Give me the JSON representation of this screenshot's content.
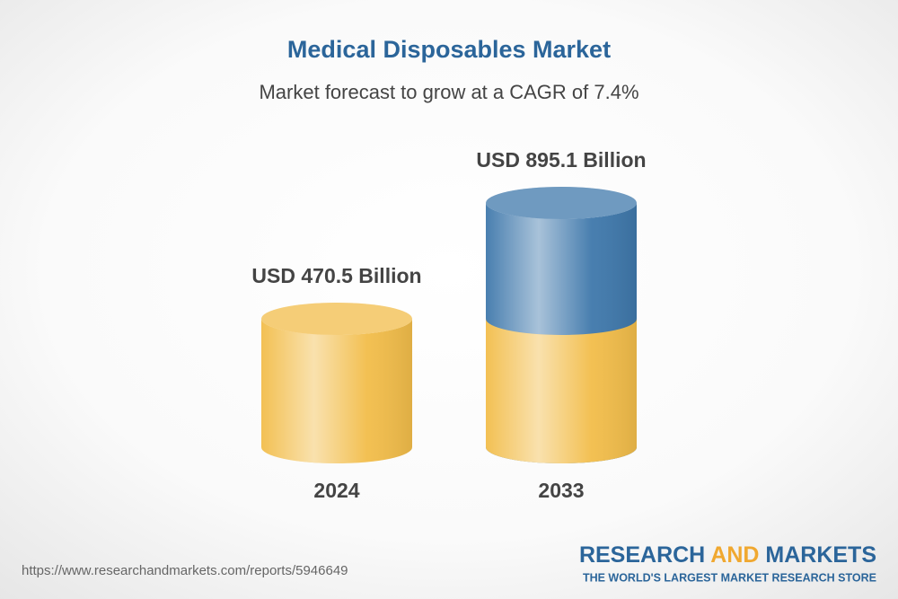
{
  "chart_data": {
    "type": "cylinder",
    "title": "Medical Disposables Market",
    "subtitle": "Market forecast to grow at a CAGR of 7.4%",
    "categories": [
      "2024",
      "2033"
    ],
    "values": [
      470.5,
      895.1
    ],
    "value_labels": [
      "USD 470.5 Billion",
      "USD 895.1 Billion"
    ],
    "color": "#f2bd4a",
    "growth_color": "#3f78ab"
  },
  "footer": {
    "url": "https://www.researchandmarkets.com/reports/5946649",
    "brand": [
      "RESEARCH",
      "AND",
      "MARKETS"
    ],
    "tagline": "THE WORLD'S LARGEST MARKET RESEARCH STORE"
  }
}
